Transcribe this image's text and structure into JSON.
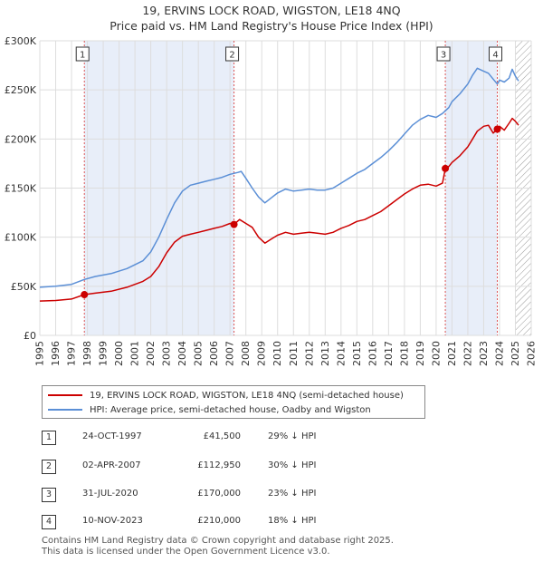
{
  "title_line1": "19, ERVINS LOCK ROAD, WIGSTON, LE18 4NQ",
  "title_line2": "Price paid vs. HM Land Registry's House Price Index (HPI)",
  "colors": {
    "property": "#cc0000",
    "hpi": "#5b8fd6",
    "shade": "#e8eef9",
    "grid": "#dddddd",
    "marker_line": "#dd5555"
  },
  "legend": {
    "property": "19, ERVINS LOCK ROAD, WIGSTON, LE18 4NQ (semi-detached house)",
    "hpi": "HPI: Average price, semi-detached house, Oadby and Wigston"
  },
  "sales": [
    {
      "num": "1",
      "date": "24-OCT-1997",
      "price": "£41,500",
      "hpi_diff": "29% ↓ HPI"
    },
    {
      "num": "2",
      "date": "02-APR-2007",
      "price": "£112,950",
      "hpi_diff": "30% ↓ HPI"
    },
    {
      "num": "3",
      "date": "31-JUL-2020",
      "price": "£170,000",
      "hpi_diff": "23% ↓ HPI"
    },
    {
      "num": "4",
      "date": "10-NOV-2023",
      "price": "£210,000",
      "hpi_diff": "18% ↓ HPI"
    }
  ],
  "footer": {
    "line1": "Contains HM Land Registry data © Crown copyright and database right 2025.",
    "line2": "This data is licensed under the Open Government Licence v3.0."
  },
  "chart_data": {
    "type": "line",
    "xlim": [
      1995,
      2026
    ],
    "ylim": [
      0,
      300000
    ],
    "y_ticks": [
      0,
      50000,
      100000,
      150000,
      200000,
      250000,
      300000
    ],
    "y_tick_labels": [
      "£0",
      "£50K",
      "£100K",
      "£150K",
      "£200K",
      "£250K",
      "£300K"
    ],
    "x_ticks": [
      1995,
      1996,
      1997,
      1998,
      1999,
      2000,
      2001,
      2002,
      2003,
      2004,
      2005,
      2006,
      2007,
      2008,
      2009,
      2010,
      2011,
      2012,
      2013,
      2014,
      2015,
      2016,
      2017,
      2018,
      2019,
      2020,
      2021,
      2022,
      2023,
      2024,
      2025,
      2026
    ],
    "x_tick_labels": [
      "1995",
      "1996",
      "1997",
      "1998",
      "1999",
      "2000",
      "2001",
      "2002",
      "2003",
      "2004",
      "2005",
      "2006",
      "2007",
      "2008",
      "2009",
      "2010",
      "2011",
      "2012",
      "2013",
      "2014",
      "2015",
      "2016",
      "2017",
      "2018",
      "2019",
      "2020",
      "2021",
      "2022",
      "2023",
      "2024",
      "2025",
      "2026"
    ],
    "shaded_ranges": [
      [
        1997.81,
        2007.25
      ],
      [
        2020.58,
        2023.86
      ]
    ],
    "hatch_from": 2025.0,
    "markers": [
      {
        "label": "1",
        "x": 1997.81,
        "y": 41500
      },
      {
        "label": "2",
        "x": 2007.25,
        "y": 112950
      },
      {
        "label": "3",
        "x": 2020.58,
        "y": 170000
      },
      {
        "label": "4",
        "x": 2023.86,
        "y": 210000
      }
    ],
    "series": [
      {
        "name": "19, ERVINS LOCK ROAD, WIGSTON, LE18 4NQ (semi-detached house)",
        "x": [
          1995.0,
          1996.0,
          1997.0,
          1997.81,
          1998.5,
          1999.5,
          2000.5,
          2001.5,
          2002.0,
          2002.5,
          2003.0,
          2003.5,
          2004.0,
          2004.5,
          2005.0,
          2005.5,
          2006.0,
          2006.5,
          2007.0,
          2007.25,
          2007.6,
          2008.0,
          2008.4,
          2008.8,
          2009.2,
          2009.6,
          2010.0,
          2010.5,
          2011.0,
          2011.5,
          2012.0,
          2012.5,
          2013.0,
          2013.5,
          2014.0,
          2014.5,
          2015.0,
          2015.5,
          2016.0,
          2016.5,
          2017.0,
          2017.5,
          2018.0,
          2018.5,
          2019.0,
          2019.5,
          2020.0,
          2020.4,
          2020.58,
          2020.8,
          2021.0,
          2021.5,
          2022.0,
          2022.3,
          2022.6,
          2023.0,
          2023.3,
          2023.6,
          2023.86,
          2024.0,
          2024.3,
          2024.6,
          2024.8,
          2025.0,
          2025.2
        ],
        "values": [
          35000,
          35500,
          37000,
          41500,
          43000,
          45000,
          49000,
          55000,
          60000,
          70000,
          84000,
          95000,
          101000,
          103000,
          105000,
          107000,
          109000,
          111000,
          114000,
          112950,
          118000,
          114000,
          110000,
          100000,
          94000,
          98000,
          102000,
          105000,
          103000,
          104000,
          105000,
          104000,
          103000,
          105000,
          109000,
          112000,
          116000,
          118000,
          122000,
          126000,
          132000,
          138000,
          144000,
          149000,
          153000,
          154000,
          152000,
          155000,
          170000,
          172000,
          176000,
          183000,
          192000,
          200000,
          208000,
          213000,
          214000,
          206000,
          210000,
          213000,
          209000,
          216000,
          221000,
          218000,
          214000
        ]
      },
      {
        "name": "HPI: Average price, semi-detached house, Oadby and Wigston",
        "x": [
          1995.0,
          1996.0,
          1997.0,
          1997.81,
          1998.5,
          1999.5,
          2000.5,
          2001.5,
          2002.0,
          2002.5,
          2003.0,
          2003.5,
          2004.0,
          2004.5,
          2005.0,
          2005.5,
          2006.0,
          2006.5,
          2007.0,
          2007.5,
          2007.7,
          2008.0,
          2008.4,
          2008.8,
          2009.2,
          2009.6,
          2010.0,
          2010.5,
          2011.0,
          2011.5,
          2012.0,
          2012.5,
          2013.0,
          2013.5,
          2014.0,
          2014.5,
          2015.0,
          2015.5,
          2016.0,
          2016.5,
          2017.0,
          2017.5,
          2018.0,
          2018.5,
          2019.0,
          2019.5,
          2020.0,
          2020.4,
          2020.8,
          2021.0,
          2021.5,
          2022.0,
          2022.3,
          2022.6,
          2023.0,
          2023.3,
          2023.6,
          2023.86,
          2024.0,
          2024.3,
          2024.6,
          2024.8,
          2025.0,
          2025.2
        ],
        "values": [
          49000,
          50000,
          52000,
          57000,
          60000,
          63000,
          68000,
          76000,
          85000,
          100000,
          118000,
          135000,
          147000,
          153000,
          155000,
          157000,
          159000,
          161000,
          164000,
          166000,
          167000,
          160000,
          150000,
          141000,
          135000,
          140000,
          145000,
          149000,
          147000,
          148000,
          149000,
          148000,
          148000,
          150000,
          155000,
          160000,
          165000,
          169000,
          175000,
          181000,
          188000,
          196000,
          205000,
          214000,
          220000,
          224000,
          222000,
          226000,
          232000,
          238000,
          246000,
          256000,
          265000,
          272000,
          269000,
          267000,
          261000,
          256000,
          260000,
          258000,
          262000,
          271000,
          264000,
          259000
        ]
      }
    ]
  }
}
